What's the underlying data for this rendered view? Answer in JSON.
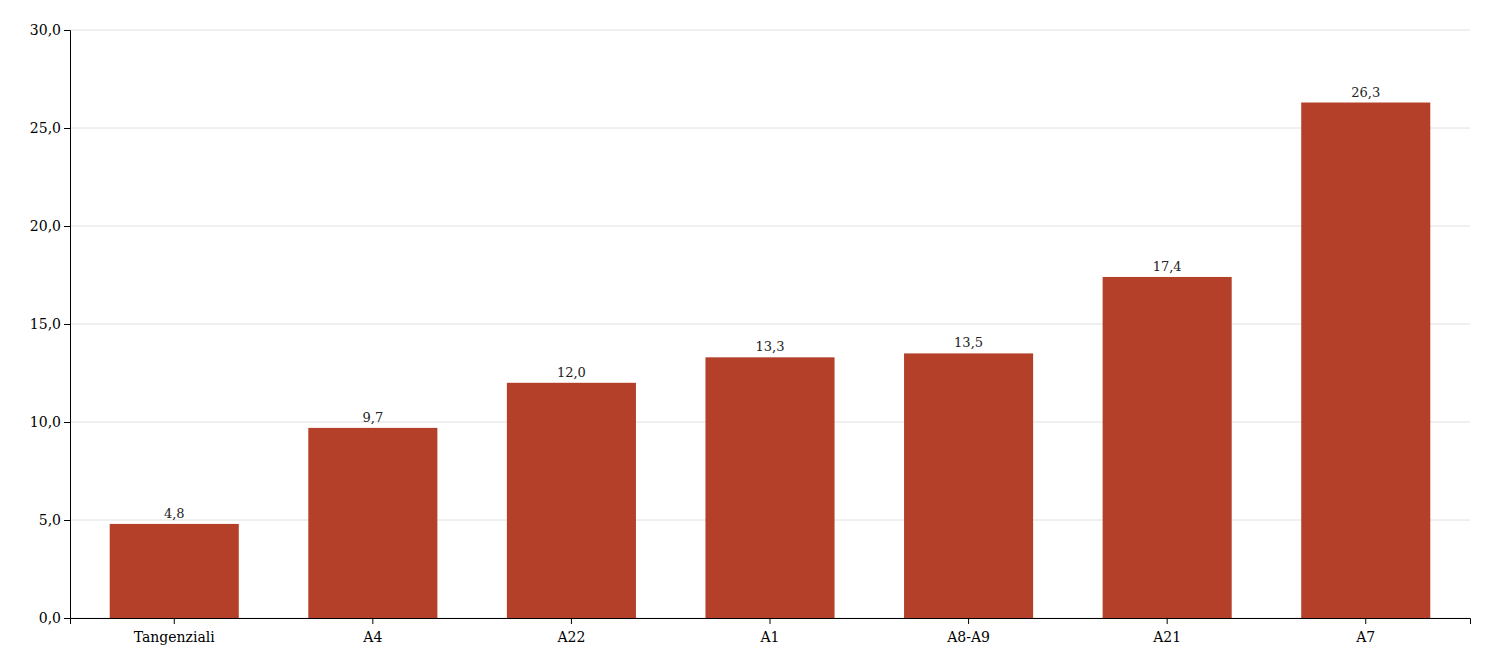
{
  "chart_data": {
    "type": "bar",
    "categories": [
      "Tangenziali",
      "A4",
      "A22",
      "A1",
      "A8-A9",
      "A21",
      "A7"
    ],
    "values": [
      4.8,
      9.7,
      12.0,
      13.3,
      13.5,
      17.4,
      26.3
    ],
    "value_labels": [
      "4,8",
      "9,7",
      "12,0",
      "13,3",
      "13,5",
      "17,4",
      "26,3"
    ],
    "color": "#b5402a",
    "ylim": [
      0,
      30
    ],
    "yticks": [
      {
        "value": 0,
        "label": "0,0"
      },
      {
        "value": 5.0,
        "label": "5,0"
      },
      {
        "value": 10.0,
        "label": "10,0"
      },
      {
        "value": 15.0,
        "label": "15,0"
      },
      {
        "value": 20.0,
        "label": "20,0"
      },
      {
        "value": 25.0,
        "label": "25,0"
      },
      {
        "value": 30.0,
        "label": "30,0"
      }
    ],
    "grid": true,
    "data_labels": true
  }
}
